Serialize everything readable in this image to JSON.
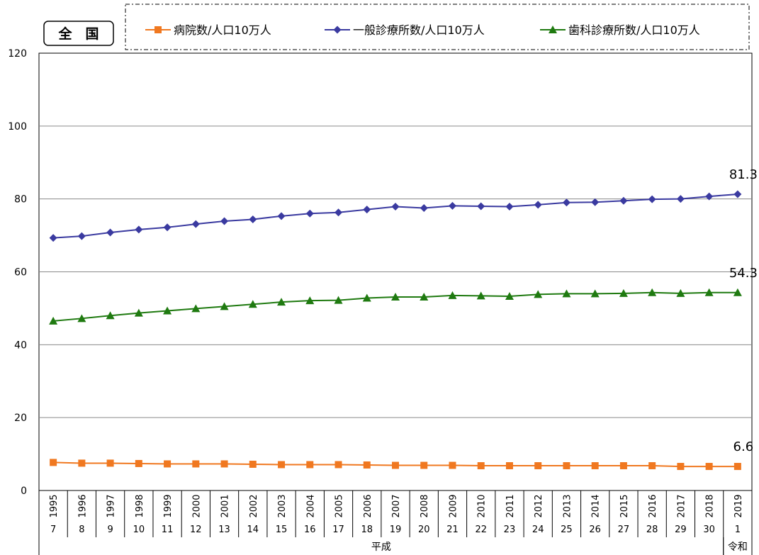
{
  "region_label": "全　国",
  "chart_data": {
    "type": "line",
    "ylim": [
      0,
      120
    ],
    "yticks": [
      0,
      20,
      40,
      60,
      80,
      100,
      120
    ],
    "grid": true,
    "legend": "top",
    "x_years": [
      "1995",
      "1996",
      "1997",
      "1998",
      "1999",
      "2000",
      "2001",
      "2002",
      "2003",
      "2004",
      "2005",
      "2006",
      "2007",
      "2008",
      "2009",
      "2010",
      "2011",
      "2012",
      "2013",
      "2014",
      "2015",
      "2016",
      "2017",
      "2018",
      "2019"
    ],
    "x_era_years": [
      "7",
      "8",
      "9",
      "10",
      "11",
      "12",
      "13",
      "14",
      "15",
      "16",
      "17",
      "18",
      "19",
      "20",
      "21",
      "22",
      "23",
      "24",
      "25",
      "26",
      "27",
      "28",
      "29",
      "30",
      "1"
    ],
    "eras": [
      {
        "name": "平成",
        "from": 0,
        "to": 23
      },
      {
        "name": "令和",
        "from": 24,
        "to": 24
      }
    ],
    "series": [
      {
        "name": "病院数/人口10万人",
        "color": "#f07820",
        "marker": "square",
        "values": [
          7.7,
          7.5,
          7.5,
          7.4,
          7.3,
          7.3,
          7.3,
          7.2,
          7.1,
          7.1,
          7.1,
          7.0,
          6.9,
          6.9,
          6.9,
          6.8,
          6.8,
          6.8,
          6.8,
          6.8,
          6.8,
          6.8,
          6.6,
          6.6,
          6.6
        ],
        "end_label": "6.6"
      },
      {
        "name": "一般診療所数/人口10万人",
        "color": "#3a3aa0",
        "marker": "diamond",
        "values": [
          69.3,
          69.8,
          70.8,
          71.6,
          72.2,
          73.1,
          73.9,
          74.4,
          75.3,
          76.0,
          76.3,
          77.1,
          77.9,
          77.5,
          78.1,
          78.0,
          77.9,
          78.4,
          79.0,
          79.1,
          79.5,
          79.9,
          80.0,
          80.7,
          81.3
        ],
        "end_label": "81.3"
      },
      {
        "name": "歯科診療所数/人口10万人",
        "color": "#1f7a10",
        "marker": "triangle",
        "values": [
          46.5,
          47.2,
          48.0,
          48.7,
          49.3,
          49.9,
          50.5,
          51.1,
          51.7,
          52.1,
          52.2,
          52.8,
          53.1,
          53.1,
          53.5,
          53.4,
          53.3,
          53.8,
          54.0,
          54.0,
          54.1,
          54.3,
          54.1,
          54.3,
          54.3
        ],
        "end_label": "54.3"
      }
    ]
  }
}
